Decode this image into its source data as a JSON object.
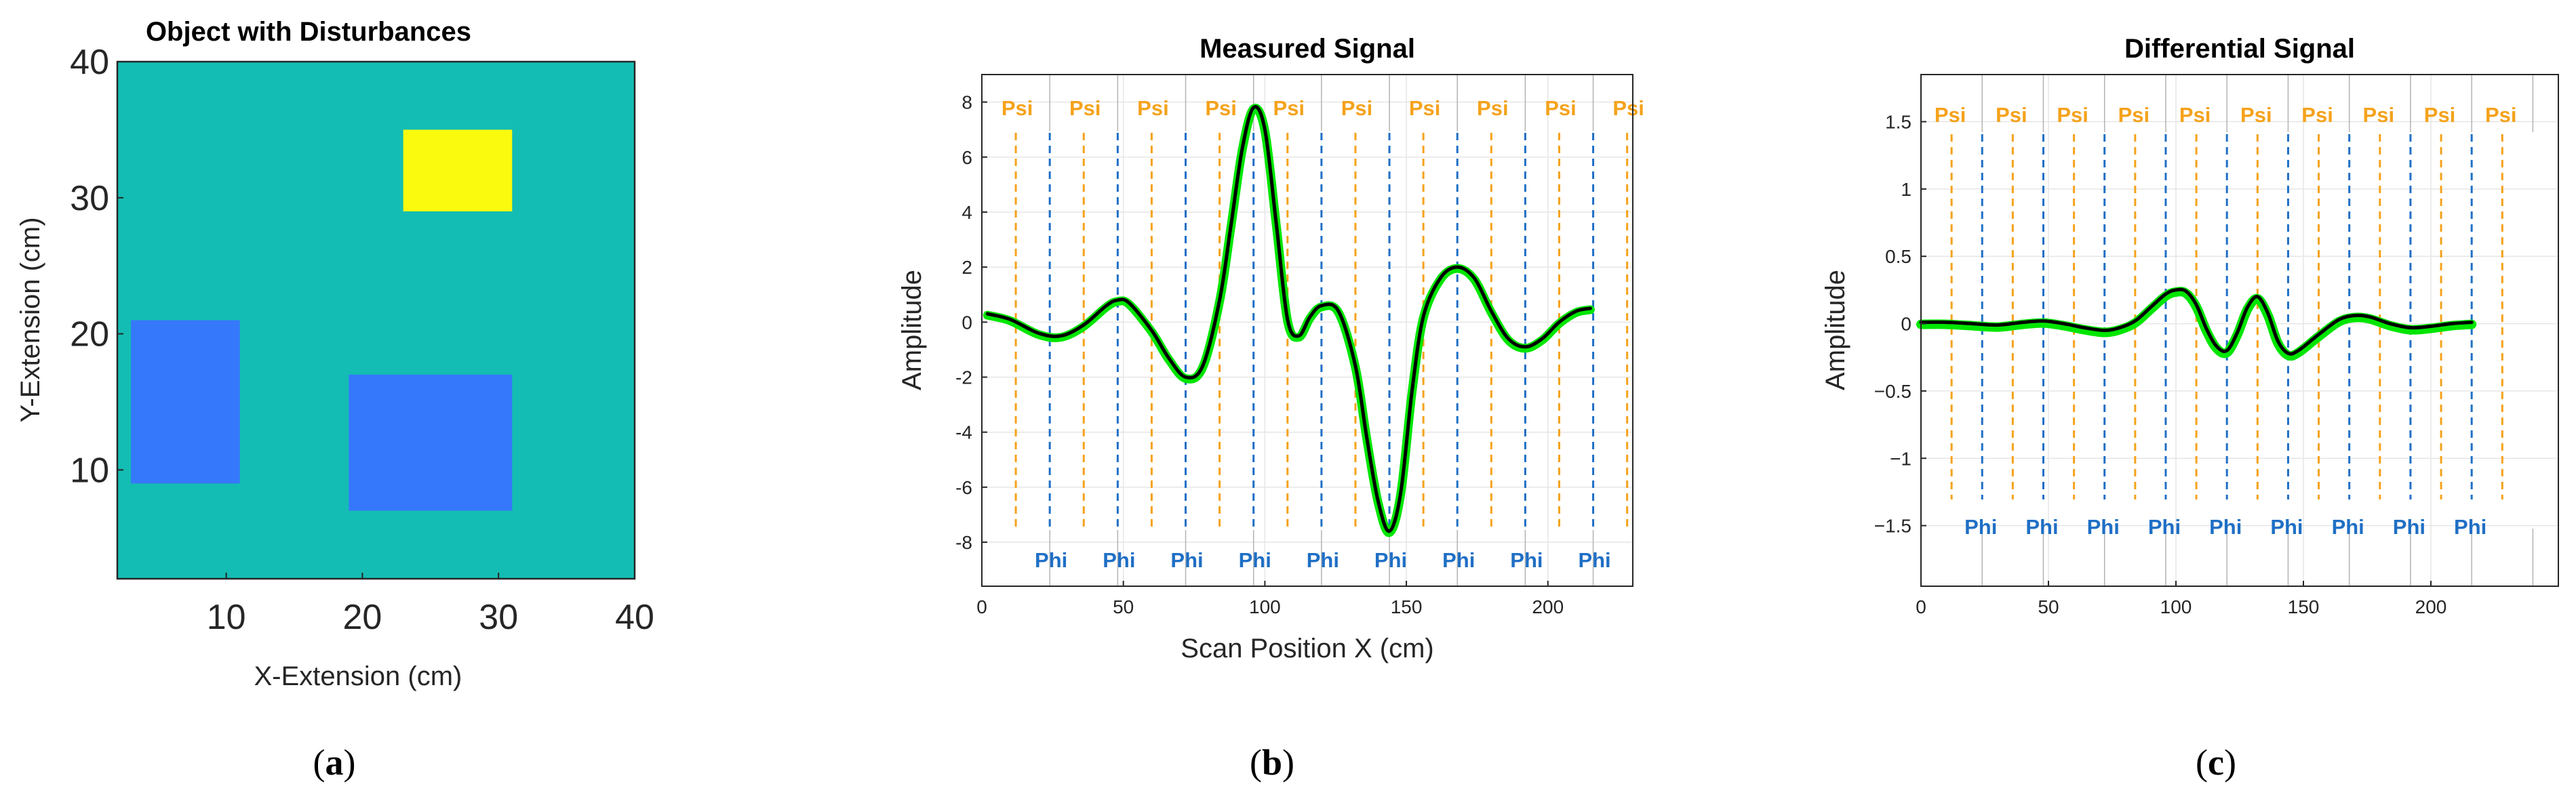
{
  "captions": [
    "a",
    "b",
    "c"
  ],
  "chart_data": [
    {
      "type": "heatmap",
      "title": "Object with Disturbances",
      "xlabel": "X-Extension (cm)",
      "ylabel": "Y-Extension (cm)",
      "xlim": [
        2,
        40
      ],
      "ylim": [
        2,
        40
      ],
      "xticks": [
        10,
        20,
        30,
        40
      ],
      "yticks": [
        10,
        20,
        30,
        40
      ],
      "background_color": "#14bdb3",
      "regions": [
        {
          "name": "yellow disturbance",
          "x": [
            23,
            31
          ],
          "y": [
            29,
            35
          ],
          "color": "#fafa0e"
        },
        {
          "name": "left blue disturbance",
          "x": [
            3,
            11
          ],
          "y": [
            9,
            21
          ],
          "color": "#3678fb"
        },
        {
          "name": "right blue disturbance",
          "x": [
            19,
            31
          ],
          "y": [
            7,
            17
          ],
          "color": "#3678fb"
        }
      ]
    },
    {
      "type": "line",
      "title": "Measured Signal",
      "xlabel": "Scan Position X (cm)",
      "ylabel": "Amplitude",
      "xlim": [
        0,
        230
      ],
      "ylim": [
        -9.6,
        9
      ],
      "xticks": [
        0,
        50,
        100,
        150,
        200
      ],
      "yticks": [
        -8,
        -6,
        -4,
        -2,
        0,
        2,
        4,
        6,
        8
      ],
      "psi_label": "Psi",
      "phi_label": "Phi",
      "psi_positions": [
        12,
        36,
        60,
        84,
        108,
        132,
        156,
        180,
        204,
        228
      ],
      "phi_positions": [
        24,
        48,
        72,
        96,
        120,
        144,
        168,
        192,
        216
      ],
      "series": [
        {
          "name": "signal",
          "color": "#000000",
          "highlight_color": "#00e600",
          "x": [
            2,
            10,
            20,
            28,
            36,
            44,
            48,
            52,
            60,
            66,
            72,
            78,
            84,
            88,
            92,
            96,
            100,
            104,
            108,
            112,
            116,
            120,
            126,
            132,
            136,
            140,
            144,
            148,
            152,
            156,
            162,
            168,
            174,
            180,
            186,
            192,
            198,
            204,
            210,
            215
          ],
          "y": [
            0.3,
            0.1,
            -0.4,
            -0.5,
            -0.1,
            0.6,
            0.8,
            0.7,
            -0.3,
            -1.3,
            -2.0,
            -1.6,
            0.8,
            3.5,
            6.3,
            7.8,
            7.0,
            3.6,
            0.1,
            -0.5,
            0.2,
            0.6,
            0.4,
            -1.6,
            -4.2,
            -6.5,
            -7.6,
            -6.2,
            -2.5,
            0.2,
            1.6,
            2.0,
            1.6,
            0.4,
            -0.6,
            -0.9,
            -0.6,
            0.0,
            0.4,
            0.5
          ]
        }
      ]
    },
    {
      "type": "line",
      "title": "Differential Signal",
      "xlabel": "",
      "ylabel": "Amplitude",
      "xlim": [
        0,
        250
      ],
      "ylim": [
        -1.95,
        1.85
      ],
      "xticks": [
        0,
        50,
        100,
        150,
        200
      ],
      "yticks": [
        -1.5,
        -1,
        -0.5,
        0,
        0.5,
        1,
        1.5
      ],
      "ytick_labels": [
        "−1.5",
        "−1",
        "−0.5",
        "0",
        "0.5",
        "1",
        "1.5"
      ],
      "psi_label": "Psi",
      "phi_label": "Phi",
      "psi_positions": [
        12,
        36,
        60,
        84,
        108,
        132,
        156,
        180,
        204,
        228
      ],
      "phi_positions": [
        24,
        48,
        72,
        96,
        120,
        144,
        168,
        192,
        216
      ],
      "series": [
        {
          "name": "differential",
          "color": "#000000",
          "highlight_color": "#00e600",
          "x": [
            0,
            10,
            20,
            30,
            40,
            48,
            56,
            64,
            72,
            78,
            84,
            90,
            96,
            100,
            104,
            108,
            112,
            116,
            120,
            124,
            128,
            132,
            136,
            140,
            144,
            148,
            156,
            164,
            170,
            176,
            184,
            192,
            200,
            208,
            216
          ],
          "y": [
            0.01,
            0.01,
            0.0,
            -0.01,
            0.01,
            0.02,
            0.0,
            -0.03,
            -0.05,
            -0.03,
            0.02,
            0.12,
            0.22,
            0.25,
            0.24,
            0.14,
            -0.04,
            -0.17,
            -0.2,
            -0.07,
            0.12,
            0.2,
            0.08,
            -0.13,
            -0.22,
            -0.2,
            -0.08,
            0.03,
            0.06,
            0.05,
            0.0,
            -0.03,
            -0.02,
            0.0,
            0.01
          ]
        }
      ]
    }
  ]
}
